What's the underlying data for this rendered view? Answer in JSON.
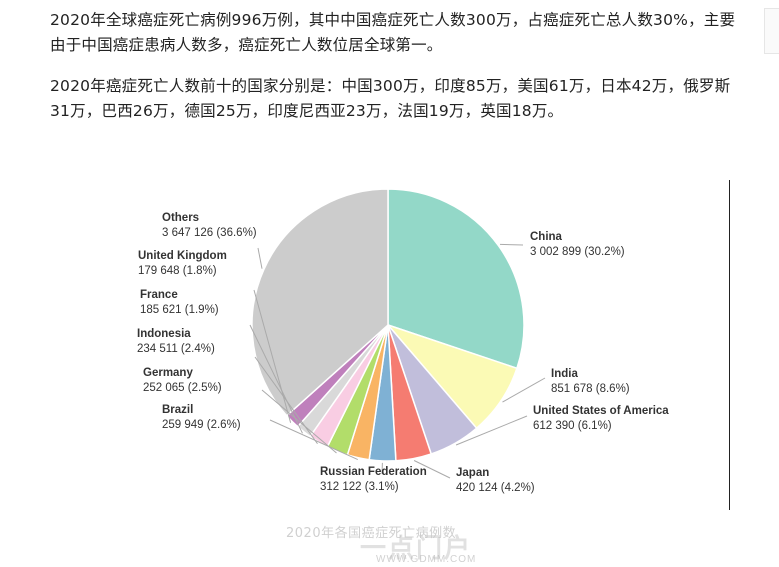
{
  "article": {
    "paragraph1": "2020年全球癌症死亡病例996万例，其中中国癌症死亡人数300万，占癌症死亡总人数30%，主要由于中国癌症患病人数多，癌症死亡人数位居全球第一。",
    "paragraph2": "2020年癌症死亡人数前十的国家分别是：中国300万，印度85万，美国61万，日本42万，俄罗斯31万，巴西26万，德国25万，印度尼西亚23万，法国19万，英国18万。"
  },
  "watermark": {
    "caption": "2020年各国癌症死亡病例数",
    "logo": "一点门户",
    "url": "WWW.GDMM.COM"
  },
  "chart_data": {
    "type": "pie",
    "title": "",
    "start_angle_deg": 0,
    "direction": "clockwise",
    "slices": [
      {
        "name": "China",
        "value": 3002899,
        "value_label": "3 002 899",
        "percent_label": "(30.2%)",
        "color": "#93d8c8"
      },
      {
        "name": "India",
        "value": 851678,
        "value_label": "851 678",
        "percent_label": "(8.6%)",
        "color": "#fbfab5"
      },
      {
        "name": "United States of America",
        "value": 612390,
        "value_label": "612 390",
        "percent_label": "(6.1%)",
        "color": "#c1bedb"
      },
      {
        "name": "Japan",
        "value": 420124,
        "value_label": "420 124",
        "percent_label": "(4.2%)",
        "color": "#f57c71"
      },
      {
        "name": "Russian Federation",
        "value": 312122,
        "value_label": "312 122",
        "percent_label": "(3.1%)",
        "color": "#7fb1d4"
      },
      {
        "name": "",
        "value": 259949,
        "color": "#f9b464"
      },
      {
        "name": "",
        "value": 252065,
        "color": "#b2dd6a"
      },
      {
        "name": "",
        "value": 234511,
        "color": "#f9cde3"
      },
      {
        "name": "",
        "value": 185621,
        "color": "#d9d9d9"
      },
      {
        "name": "",
        "value": 179648,
        "color": "#bf80bc"
      },
      {
        "name": "Others",
        "value": 3647126,
        "value_label": "3 647 126",
        "percent_label": "(36.6%)",
        "color": "#cccccc"
      }
    ],
    "left_labels": [
      {
        "name": "Brazil",
        "value_label": "259 949",
        "percent_label": "(2.6%)"
      },
      {
        "name": "Germany",
        "value_label": "252 065",
        "percent_label": "(2.5%)"
      },
      {
        "name": "Indonesia",
        "value_label": "234 511",
        "percent_label": "(2.4%)"
      },
      {
        "name": "France",
        "value_label": "185 621",
        "percent_label": "(1.9%)"
      },
      {
        "name": "United Kingdom",
        "value_label": "179 648",
        "percent_label": "(1.8%)"
      }
    ]
  }
}
